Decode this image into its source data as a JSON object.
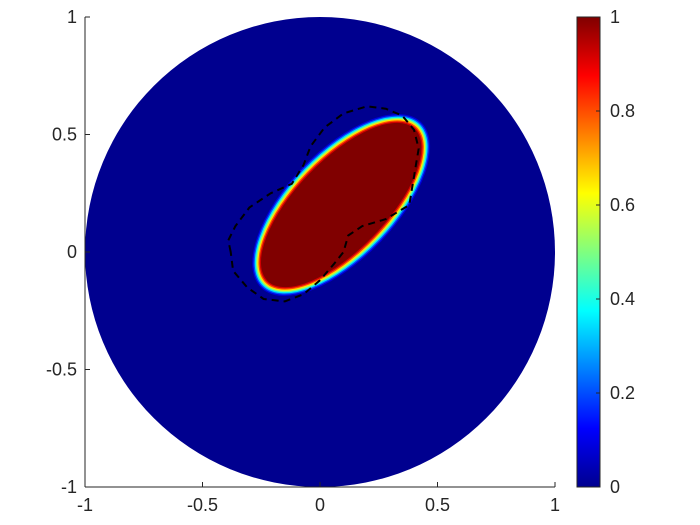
{
  "chart_data": {
    "type": "heatmap",
    "title": "",
    "xlabel": "",
    "ylabel": "",
    "xlim": [
      -1,
      1
    ],
    "ylim": [
      -1,
      1
    ],
    "x_ticks": [
      -1,
      -0.5,
      0,
      0.5,
      1
    ],
    "x_tick_labels": [
      "-1",
      "-0.5",
      "0",
      "0.5",
      "1"
    ],
    "y_ticks": [
      -1,
      -0.5,
      0,
      0.5,
      1
    ],
    "y_tick_labels": [
      "-1",
      "-0.5",
      "0",
      "0.5",
      "1"
    ],
    "colormap": "jet",
    "clim": [
      0,
      1
    ],
    "colorbar_ticks": [
      0,
      0.2,
      0.4,
      0.6,
      0.8,
      1
    ],
    "colorbar_tick_labels": [
      "0",
      "0.2",
      "0.4",
      "0.6",
      "0.8",
      "1"
    ],
    "domain": {
      "shape": "disk",
      "center": [
        0,
        0
      ],
      "radius": 1,
      "value": 0
    },
    "region": {
      "shape": "ellipse",
      "center": [
        0.09,
        0.2
      ],
      "semi_axes": [
        0.46,
        0.2
      ],
      "rotation_deg": 46,
      "value": 1,
      "edge_width": 0.02
    },
    "dashed_contour": {
      "style": "dashed",
      "color": "#000000",
      "points": [
        [
          -0.38,
          0.0
        ],
        [
          -0.39,
          0.05
        ],
        [
          -0.36,
          0.11
        ],
        [
          -0.3,
          0.19
        ],
        [
          -0.21,
          0.25
        ],
        [
          -0.12,
          0.29
        ],
        [
          -0.07,
          0.37
        ],
        [
          -0.04,
          0.45
        ],
        [
          0.02,
          0.53
        ],
        [
          0.1,
          0.59
        ],
        [
          0.2,
          0.62
        ],
        [
          0.28,
          0.61
        ],
        [
          0.35,
          0.58
        ],
        [
          0.4,
          0.52
        ],
        [
          0.42,
          0.44
        ],
        [
          0.41,
          0.38
        ],
        [
          0.38,
          0.2
        ],
        [
          0.28,
          0.14
        ],
        [
          0.18,
          0.11
        ],
        [
          0.12,
          0.07
        ],
        [
          0.1,
          0.0
        ],
        [
          0.06,
          -0.05
        ],
        [
          0.0,
          -0.12
        ],
        [
          -0.07,
          -0.18
        ],
        [
          -0.15,
          -0.21
        ],
        [
          -0.24,
          -0.2
        ],
        [
          -0.31,
          -0.15
        ],
        [
          -0.37,
          -0.08
        ]
      ]
    }
  }
}
